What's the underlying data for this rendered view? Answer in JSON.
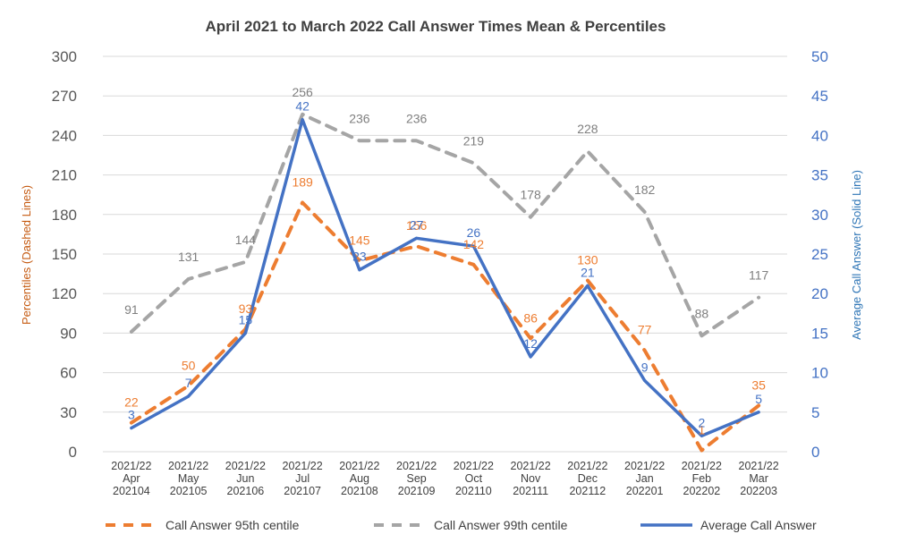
{
  "chart_data": {
    "type": "line",
    "title": "April 2021 to March 2022 Call Answer Times Mean & Percentiles",
    "categories": [
      [
        "2021/22",
        "Apr",
        "202104"
      ],
      [
        "2021/22",
        "May",
        "202105"
      ],
      [
        "2021/22",
        "Jun",
        "202106"
      ],
      [
        "2021/22",
        "Jul",
        "202107"
      ],
      [
        "2021/22",
        "Aug",
        "202108"
      ],
      [
        "2021/22",
        "Sep",
        "202109"
      ],
      [
        "2021/22",
        "Oct",
        "202110"
      ],
      [
        "2021/22",
        "Nov",
        "202111"
      ],
      [
        "2021/22",
        "Dec",
        "202112"
      ],
      [
        "2021/22",
        "Jan",
        "202201"
      ],
      [
        "2021/22",
        "Feb",
        "202202"
      ],
      [
        "2021/22",
        "Mar",
        "202203"
      ]
    ],
    "ylabel_left": "Percentiles (Dashed Lines)",
    "ylabel_right": "Average Call Answer (Solid Line)",
    "ylim_left": [
      0,
      300
    ],
    "yticks_left": [
      "0",
      "30",
      "60",
      "90",
      "120",
      "150",
      "180",
      "210",
      "240",
      "270",
      "300"
    ],
    "ylim_right": [
      0,
      50
    ],
    "yticks_right": [
      "0",
      "5",
      "10",
      "15",
      "20",
      "25",
      "30",
      "35",
      "40",
      "45",
      "50"
    ],
    "grid": true,
    "legend_position": "bottom",
    "series": [
      {
        "name": "Call Answer 95th centile",
        "axis": "left",
        "style": "dashed",
        "color": "#ed7d31",
        "values": [
          22,
          50,
          93,
          189,
          145,
          156,
          142,
          86,
          130,
          77,
          1,
          35
        ]
      },
      {
        "name": "Call Answer 99th centile",
        "axis": "left",
        "style": "dashed",
        "color": "#a5a5a5",
        "values": [
          91,
          131,
          144,
          256,
          236,
          236,
          219,
          178,
          228,
          182,
          88,
          117
        ]
      },
      {
        "name": "Average Call Answer",
        "axis": "right",
        "style": "solid",
        "color": "#4472c4",
        "values": [
          3,
          7,
          15,
          42,
          23,
          27,
          26,
          12,
          21,
          9,
          2,
          5
        ]
      }
    ]
  }
}
